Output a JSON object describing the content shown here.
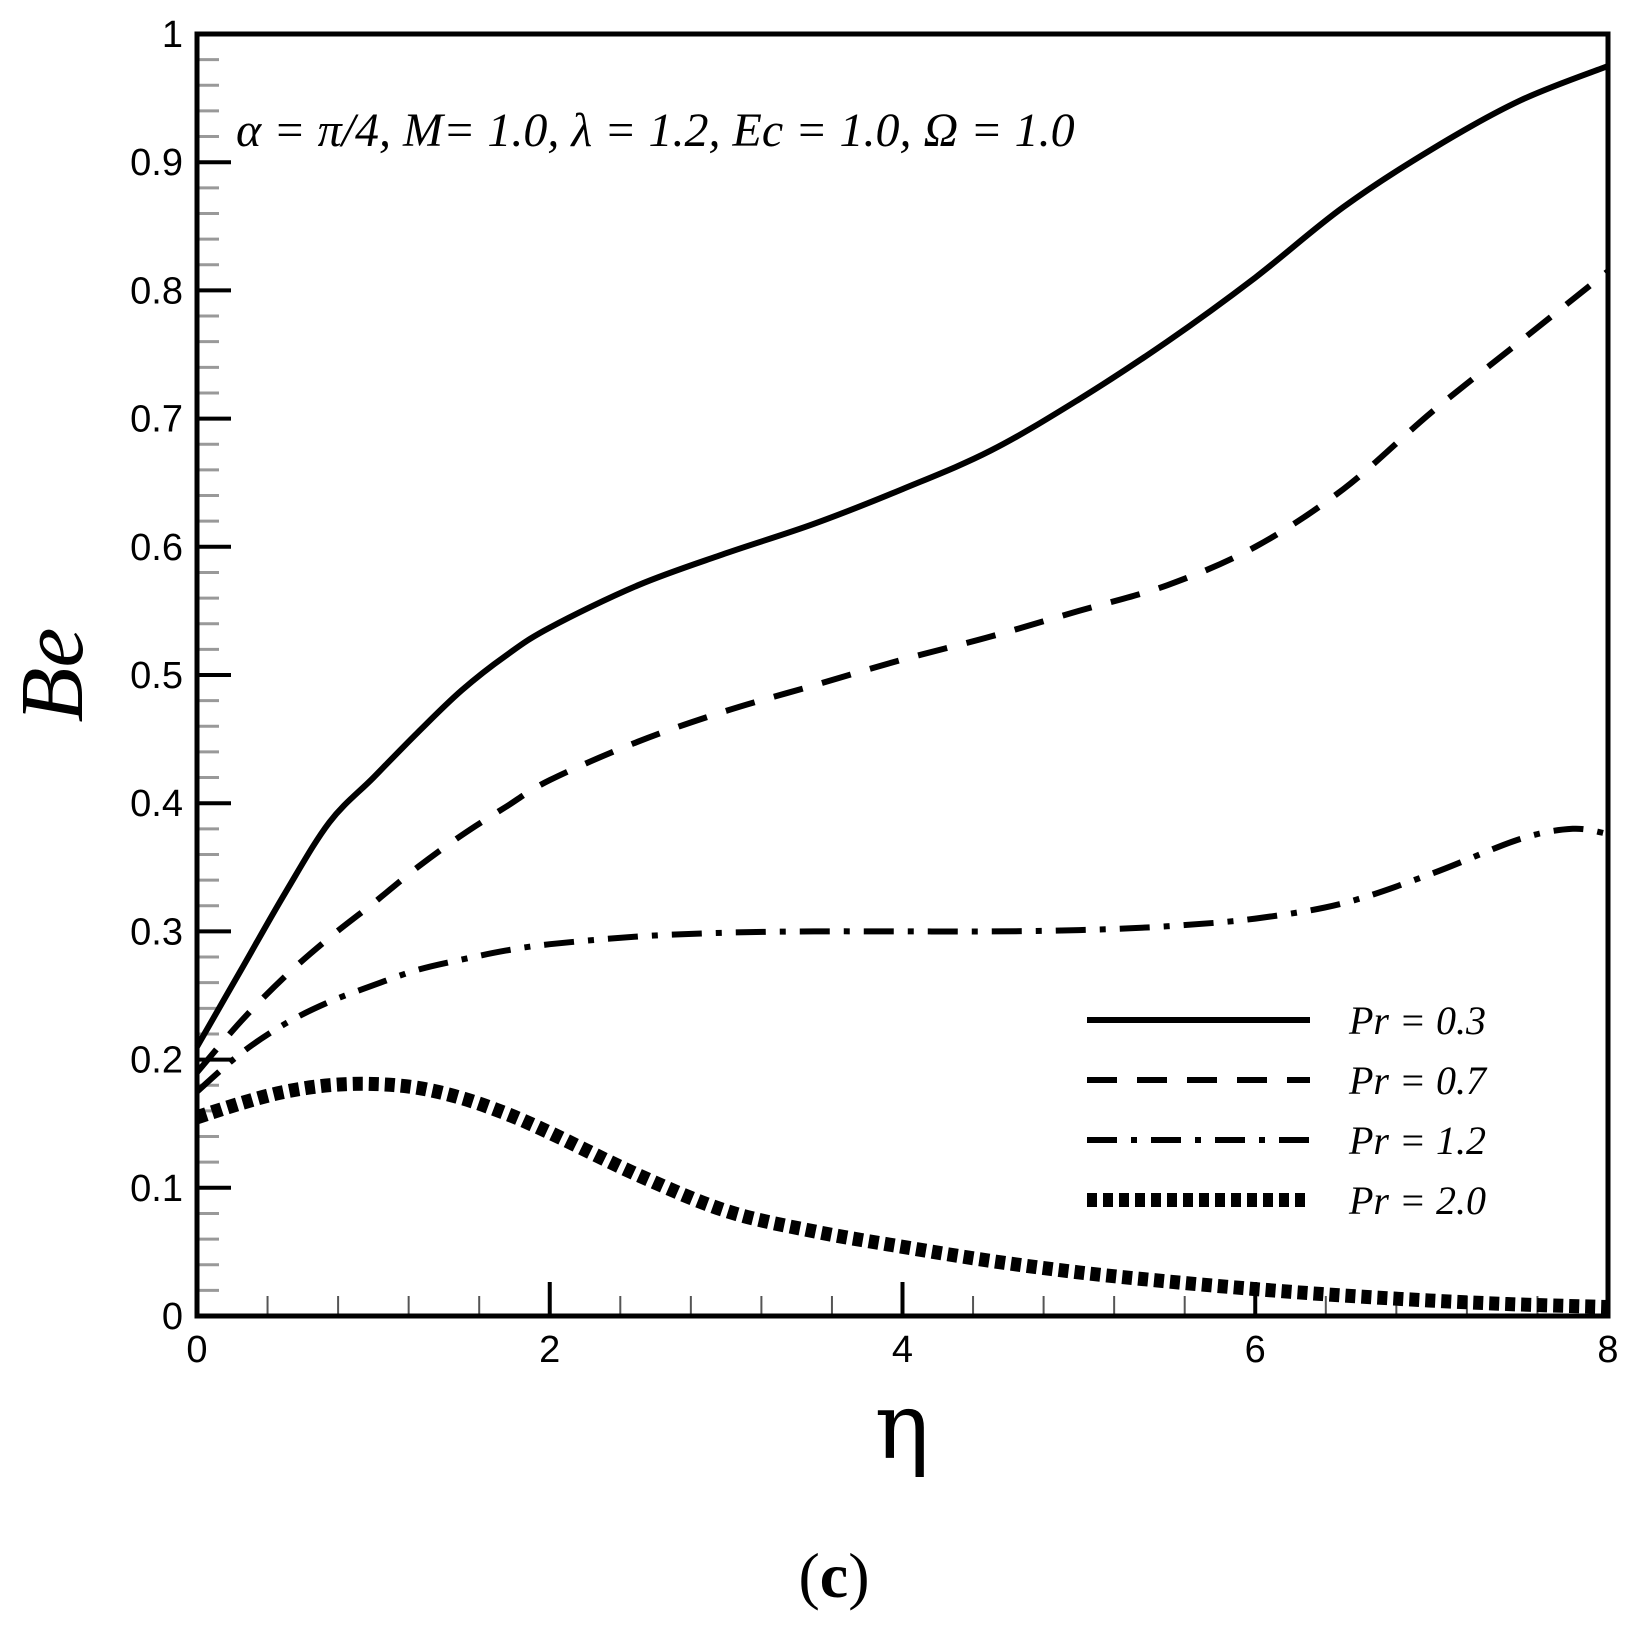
{
  "chart_data": {
    "type": "line",
    "title": "",
    "annotation": "α = π/4, M= 1.0, λ = 1.2, Ec = 1.0, Ω = 1.0",
    "xlabel": "η",
    "ylabel": "Be",
    "xlim": [
      0,
      8
    ],
    "ylim": [
      0,
      1
    ],
    "x_ticks": [
      0,
      2,
      4,
      6,
      8
    ],
    "x_tick_labels": [
      "0",
      "2",
      "4",
      "6",
      "8"
    ],
    "y_ticks": [
      0,
      0.1,
      0.2,
      0.3,
      0.4,
      0.5,
      0.6,
      0.7,
      0.8,
      0.9,
      1
    ],
    "y_tick_labels": [
      "0",
      "0.1",
      "0.2",
      "0.3",
      "0.4",
      "0.5",
      "0.6",
      "0.7",
      "0.8",
      "0.9",
      "1"
    ],
    "grid": false,
    "legend_position": "bottom-right",
    "series": [
      {
        "name": "Pr = 0.3",
        "style": "solid",
        "color": "#000000",
        "x": [
          0,
          0.25,
          0.5,
          0.75,
          1.0,
          1.25,
          1.5,
          1.75,
          2.0,
          2.5,
          3.0,
          3.5,
          4.0,
          4.5,
          5.0,
          5.5,
          6.0,
          6.5,
          7.0,
          7.5,
          8.0
        ],
        "y": [
          0.21,
          0.27,
          0.33,
          0.385,
          0.42,
          0.455,
          0.488,
          0.515,
          0.537,
          0.57,
          0.595,
          0.618,
          0.645,
          0.675,
          0.715,
          0.76,
          0.81,
          0.865,
          0.91,
          0.948,
          0.975
        ]
      },
      {
        "name": "Pr = 0.7",
        "style": "dashed",
        "color": "#000000",
        "x": [
          0,
          0.25,
          0.5,
          0.75,
          1.0,
          1.25,
          1.5,
          1.75,
          2.0,
          2.5,
          3.0,
          3.5,
          4.0,
          4.5,
          5.0,
          5.5,
          6.0,
          6.5,
          7.0,
          7.5,
          8.0
        ],
        "y": [
          0.19,
          0.23,
          0.265,
          0.295,
          0.322,
          0.35,
          0.375,
          0.397,
          0.418,
          0.448,
          0.472,
          0.492,
          0.512,
          0.53,
          0.55,
          0.57,
          0.6,
          0.645,
          0.705,
          0.76,
          0.815
        ]
      },
      {
        "name": "Pr = 1.2",
        "style": "dashdot",
        "color": "#000000",
        "x": [
          0,
          0.25,
          0.5,
          0.75,
          1.0,
          1.25,
          1.5,
          1.75,
          2.0,
          2.5,
          3.0,
          3.5,
          4.0,
          4.5,
          5.0,
          5.5,
          6.0,
          6.5,
          7.0,
          7.5,
          7.8,
          8.0
        ],
        "y": [
          0.175,
          0.205,
          0.228,
          0.245,
          0.258,
          0.27,
          0.278,
          0.285,
          0.29,
          0.296,
          0.299,
          0.3,
          0.3,
          0.3,
          0.301,
          0.304,
          0.31,
          0.322,
          0.345,
          0.372,
          0.38,
          0.376
        ]
      },
      {
        "name": "Pr = 2.0",
        "style": "dotted-thick",
        "color": "#000000",
        "x": [
          0,
          0.25,
          0.5,
          0.75,
          1.0,
          1.25,
          1.5,
          1.75,
          2.0,
          2.5,
          3.0,
          3.5,
          4.0,
          4.5,
          5.0,
          5.5,
          6.0,
          6.5,
          7.0,
          7.5,
          8.0
        ],
        "y": [
          0.155,
          0.166,
          0.175,
          0.18,
          0.181,
          0.178,
          0.17,
          0.158,
          0.143,
          0.11,
          0.082,
          0.066,
          0.054,
          0.043,
          0.034,
          0.027,
          0.021,
          0.016,
          0.012,
          0.009,
          0.007
        ]
      }
    ]
  },
  "panel_label": {
    "open": "(",
    "letter": "c",
    "close": ")"
  }
}
